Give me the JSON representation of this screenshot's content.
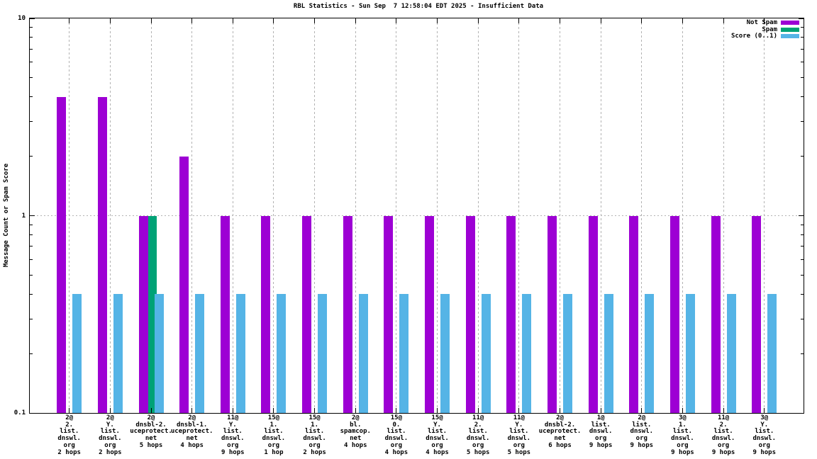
{
  "title": "RBL Statistics - Sun Sep  7 12:58:04 EDT 2025 - Insufficient Data",
  "colors": {
    "not_spam": "#9d00d4",
    "spam": "#00a276",
    "score": "#55b4e6",
    "grid": "#b2b2b2",
    "axis": "#000000",
    "background": "#ffffff"
  },
  "chart_data": {
    "type": "bar",
    "title": "RBL Statistics - Sun Sep  7 12:58:04 EDT 2025 - Insufficient Data",
    "xlabel": "",
    "ylabel": "Message Count or Spam Score",
    "y_scale": "log",
    "ylim": [
      0.1,
      10
    ],
    "y_major_ticks": [
      {
        "value": 10,
        "label": "10"
      },
      {
        "value": 1,
        "label": "1"
      },
      {
        "value": 0.1,
        "label": "0.1"
      }
    ],
    "grid": {
      "x_dashed_gridlines": true,
      "y_gridline_at_1": true
    },
    "legend_position": "top-right-inside",
    "categories": [
      {
        "lines": [
          "2@",
          "2.",
          "list.",
          "dnswl.",
          "org",
          "2 hops"
        ]
      },
      {
        "lines": [
          "2@",
          "Y.",
          "list.",
          "dnswl.",
          "org",
          "2 hops"
        ]
      },
      {
        "lines": [
          "2@",
          "dnsbl-2.",
          "uceprotect.",
          "net",
          "5 hops"
        ]
      },
      {
        "lines": [
          "2@",
          "dnsbl-1.",
          "uceprotect.",
          "net",
          "4 hops"
        ]
      },
      {
        "lines": [
          "11@",
          "Y.",
          "list.",
          "dnswl.",
          "org",
          "9 hops"
        ]
      },
      {
        "lines": [
          "15@",
          "1.",
          "list.",
          "dnswl.",
          "org",
          "1 hop"
        ]
      },
      {
        "lines": [
          "15@",
          "1.",
          "list.",
          "dnswl.",
          "org",
          "2 hops"
        ]
      },
      {
        "lines": [
          "2@",
          "bl.",
          "spamcop.",
          "net",
          "4 hops"
        ]
      },
      {
        "lines": [
          "15@",
          "0.",
          "list.",
          "dnswl.",
          "org",
          "4 hops"
        ]
      },
      {
        "lines": [
          "15@",
          "Y.",
          "list.",
          "dnswl.",
          "org",
          "4 hops"
        ]
      },
      {
        "lines": [
          "11@",
          "2.",
          "list.",
          "dnswl.",
          "org",
          "5 hops"
        ]
      },
      {
        "lines": [
          "11@",
          "Y.",
          "list.",
          "dnswl.",
          "org",
          "5 hops"
        ]
      },
      {
        "lines": [
          "2@",
          "dnsbl-2.",
          "uceprotect.",
          "net",
          "6 hops"
        ]
      },
      {
        "lines": [
          "1@",
          "list.",
          "dnswl.",
          "org",
          "9 hops"
        ]
      },
      {
        "lines": [
          "2@",
          "list.",
          "dnswl.",
          "org",
          "9 hops"
        ]
      },
      {
        "lines": [
          "3@",
          "1.",
          "list.",
          "dnswl.",
          "org",
          "9 hops"
        ]
      },
      {
        "lines": [
          "11@",
          "2.",
          "list.",
          "dnswl.",
          "org",
          "9 hops"
        ]
      },
      {
        "lines": [
          "3@",
          "Y.",
          "list.",
          "dnswl.",
          "org",
          "9 hops"
        ]
      }
    ],
    "series": [
      {
        "name": "Not Spam",
        "color": "#9d00d4",
        "values": [
          4,
          4,
          1,
          2,
          1,
          1,
          1,
          1,
          1,
          1,
          1,
          1,
          1,
          1,
          1,
          1,
          1,
          1
        ]
      },
      {
        "name": "Spam",
        "color": "#00a276",
        "values": [
          null,
          null,
          1,
          null,
          null,
          null,
          null,
          null,
          null,
          null,
          null,
          null,
          null,
          null,
          null,
          null,
          null,
          null
        ]
      },
      {
        "name": "Score (0..1)",
        "color": "#55b4e6",
        "values": [
          0.4,
          0.4,
          0.4,
          0.4,
          0.4,
          0.4,
          0.4,
          0.4,
          0.4,
          0.4,
          0.4,
          0.4,
          0.4,
          0.4,
          0.4,
          0.4,
          0.4,
          0.4
        ]
      }
    ]
  }
}
